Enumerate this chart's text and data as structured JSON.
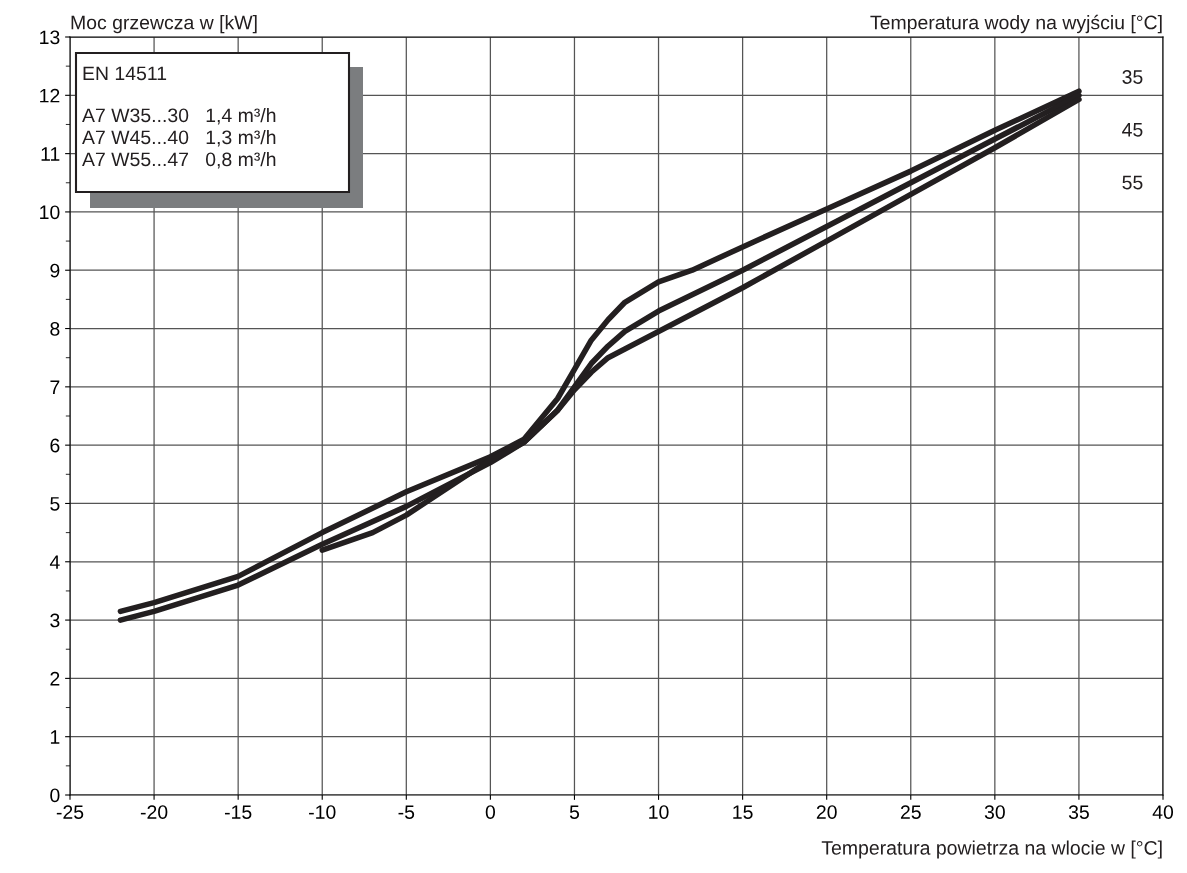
{
  "chart_data": {
    "type": "line",
    "ylabel": "Moc grzewcza w [kW]",
    "xlabel": "Temperatura powietrza na wlocie w [°C]",
    "legend_title": "Temperatura wody na wyjściu [°C]",
    "annotations": [
      "EN 14511",
      "A7 W35...30   1,4 m³/h",
      "A7 W45...40   1,3 m³/h",
      "A7 W55...47   0,8 m³/h"
    ],
    "series": [
      {
        "name": "35",
        "color": "#231f20",
        "x": [
          -22,
          -20,
          -15,
          -10,
          -5,
          0,
          2,
          4,
          5,
          6,
          7,
          8,
          10,
          12,
          15,
          20,
          25,
          30,
          35
        ],
        "values": [
          3.15,
          3.3,
          3.75,
          4.5,
          5.2,
          5.8,
          6.1,
          6.8,
          7.3,
          7.8,
          8.15,
          8.45,
          8.8,
          9.0,
          9.4,
          10.05,
          10.7,
          11.4,
          12.07
        ]
      },
      {
        "name": "45",
        "color": "#231f20",
        "x": [
          -22,
          -20,
          -15,
          -10,
          -5,
          0,
          2,
          4,
          5,
          6,
          7,
          8,
          10,
          15,
          20,
          25,
          30,
          35
        ],
        "values": [
          3.0,
          3.15,
          3.6,
          4.3,
          4.95,
          5.7,
          6.05,
          6.6,
          7.0,
          7.4,
          7.7,
          7.95,
          8.3,
          9.0,
          9.75,
          10.5,
          11.25,
          12.0
        ]
      },
      {
        "name": "55",
        "color": "#231f20",
        "x": [
          -10,
          -7,
          -5,
          0,
          2,
          4,
          5,
          6,
          7,
          8,
          10,
          15,
          20,
          25,
          30,
          35
        ],
        "values": [
          4.2,
          4.5,
          4.8,
          5.75,
          6.05,
          6.6,
          6.95,
          7.25,
          7.5,
          7.65,
          7.95,
          8.7,
          9.5,
          10.3,
          11.1,
          11.93
        ]
      }
    ],
    "xlim": [
      -25,
      40
    ],
    "xticks": [
      -25,
      -20,
      -15,
      -10,
      -5,
      0,
      5,
      10,
      15,
      20,
      25,
      30,
      35,
      40
    ],
    "ylim": [
      0,
      13
    ],
    "yticks": [
      0,
      1,
      2,
      3,
      4,
      5,
      6,
      7,
      8,
      9,
      10,
      11,
      12,
      13
    ],
    "grid": true,
    "line_style": "solid",
    "marker": "none"
  }
}
